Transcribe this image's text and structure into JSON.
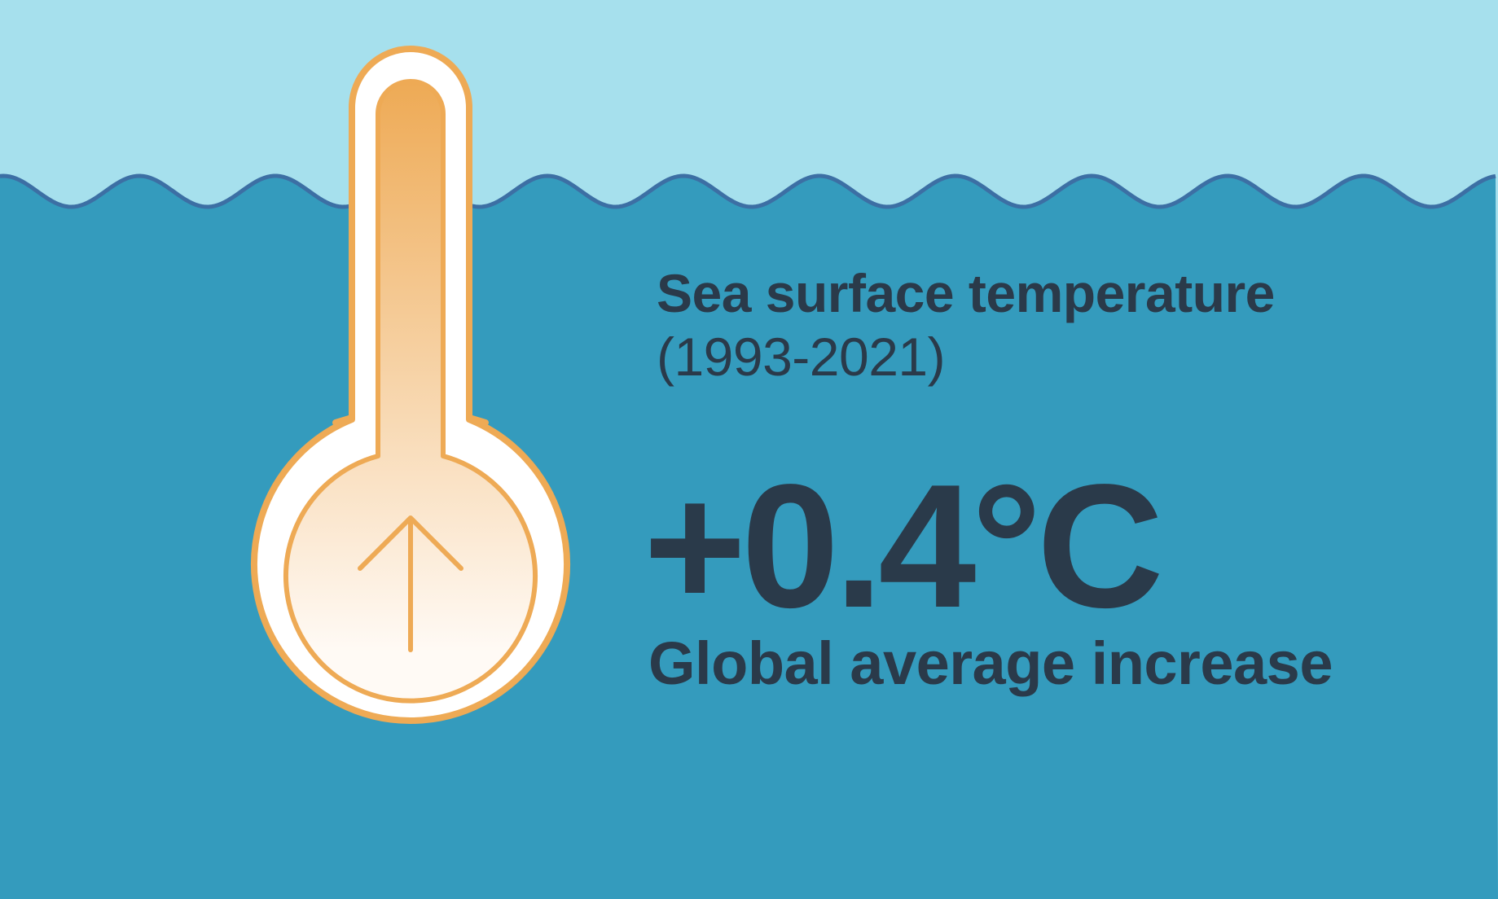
{
  "infographic": {
    "title_line1": "Sea surface temperature",
    "title_line2": "(1993-2021)",
    "value": "+0.4°C",
    "caption": "Global average increase"
  },
  "illustration": {
    "thermometer_icon": "thermometer-icon",
    "arrow_icon": "arrow-up-icon"
  },
  "colors": {
    "sky": "#a6e0ed",
    "sea": "#349bbd",
    "wave_line": "#3c6fa4",
    "thermo_outline": "#eeaa55",
    "thermo_fill_top": "#eeaa55",
    "thermo_fill_bottom": "#fffaf5",
    "text": "#2a3a4a"
  }
}
